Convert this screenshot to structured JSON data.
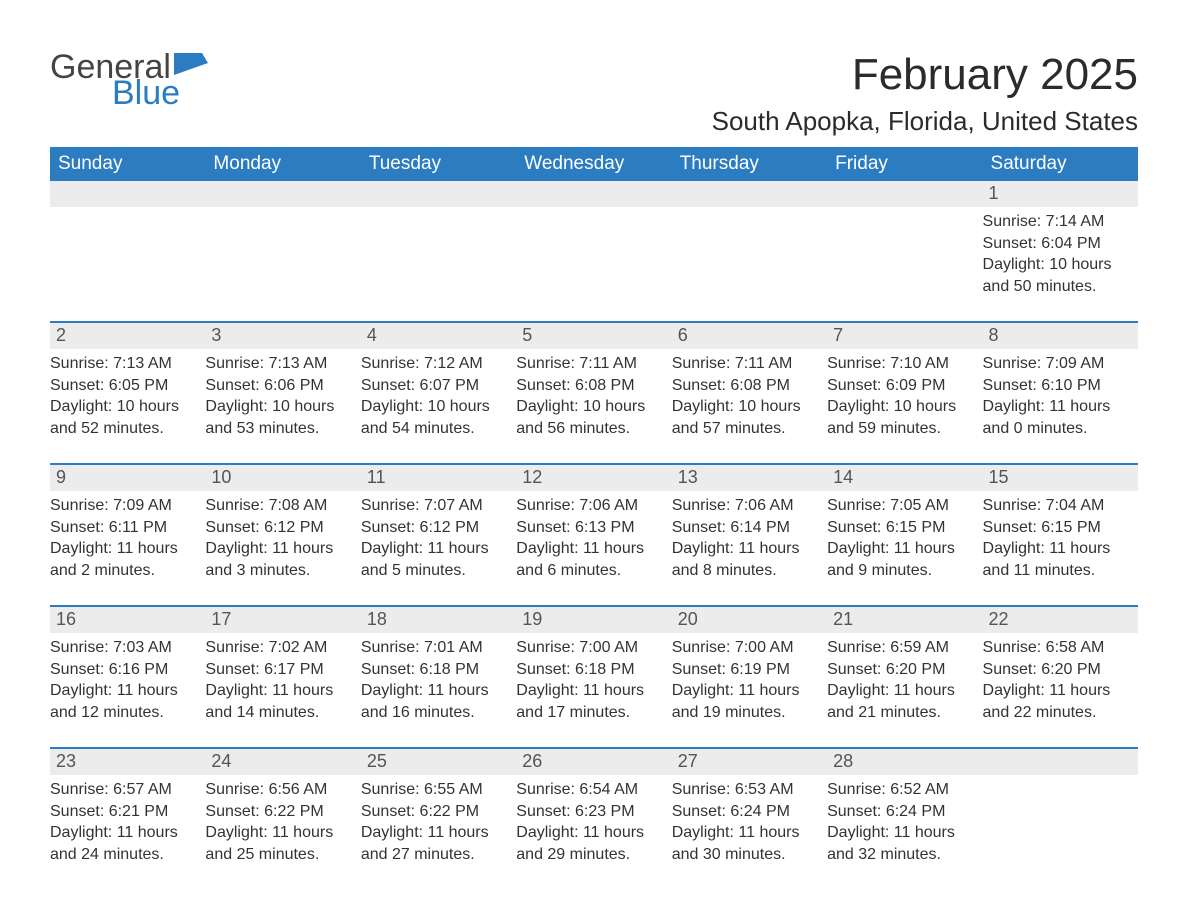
{
  "logo": {
    "word1": "General",
    "word2": "Blue",
    "shape_color": "#2b7cc0",
    "text_color1": "#444444",
    "text_color2": "#2b7cc0"
  },
  "title": {
    "month_year": "February 2025",
    "location": "South Apopka, Florida, United States"
  },
  "colors": {
    "header_bg": "#2b7cc0",
    "header_text": "#ffffff",
    "week_divider": "#2b7cc0",
    "daynum_bg": "#ececec",
    "body_text": "#333333",
    "background": "#ffffff"
  },
  "fonts": {
    "title_size_pt": 33,
    "location_size_pt": 20,
    "dow_size_pt": 14,
    "body_size_pt": 12
  },
  "days_of_week": [
    "Sunday",
    "Monday",
    "Tuesday",
    "Wednesday",
    "Thursday",
    "Friday",
    "Saturday"
  ],
  "weeks": [
    [
      {
        "n": "",
        "sunrise": "",
        "sunset": "",
        "daylight": ""
      },
      {
        "n": "",
        "sunrise": "",
        "sunset": "",
        "daylight": ""
      },
      {
        "n": "",
        "sunrise": "",
        "sunset": "",
        "daylight": ""
      },
      {
        "n": "",
        "sunrise": "",
        "sunset": "",
        "daylight": ""
      },
      {
        "n": "",
        "sunrise": "",
        "sunset": "",
        "daylight": ""
      },
      {
        "n": "",
        "sunrise": "",
        "sunset": "",
        "daylight": ""
      },
      {
        "n": "1",
        "sunrise": "Sunrise: 7:14 AM",
        "sunset": "Sunset: 6:04 PM",
        "daylight": "Daylight: 10 hours and 50 minutes."
      }
    ],
    [
      {
        "n": "2",
        "sunrise": "Sunrise: 7:13 AM",
        "sunset": "Sunset: 6:05 PM",
        "daylight": "Daylight: 10 hours and 52 minutes."
      },
      {
        "n": "3",
        "sunrise": "Sunrise: 7:13 AM",
        "sunset": "Sunset: 6:06 PM",
        "daylight": "Daylight: 10 hours and 53 minutes."
      },
      {
        "n": "4",
        "sunrise": "Sunrise: 7:12 AM",
        "sunset": "Sunset: 6:07 PM",
        "daylight": "Daylight: 10 hours and 54 minutes."
      },
      {
        "n": "5",
        "sunrise": "Sunrise: 7:11 AM",
        "sunset": "Sunset: 6:08 PM",
        "daylight": "Daylight: 10 hours and 56 minutes."
      },
      {
        "n": "6",
        "sunrise": "Sunrise: 7:11 AM",
        "sunset": "Sunset: 6:08 PM",
        "daylight": "Daylight: 10 hours and 57 minutes."
      },
      {
        "n": "7",
        "sunrise": "Sunrise: 7:10 AM",
        "sunset": "Sunset: 6:09 PM",
        "daylight": "Daylight: 10 hours and 59 minutes."
      },
      {
        "n": "8",
        "sunrise": "Sunrise: 7:09 AM",
        "sunset": "Sunset: 6:10 PM",
        "daylight": "Daylight: 11 hours and 0 minutes."
      }
    ],
    [
      {
        "n": "9",
        "sunrise": "Sunrise: 7:09 AM",
        "sunset": "Sunset: 6:11 PM",
        "daylight": "Daylight: 11 hours and 2 minutes."
      },
      {
        "n": "10",
        "sunrise": "Sunrise: 7:08 AM",
        "sunset": "Sunset: 6:12 PM",
        "daylight": "Daylight: 11 hours and 3 minutes."
      },
      {
        "n": "11",
        "sunrise": "Sunrise: 7:07 AM",
        "sunset": "Sunset: 6:12 PM",
        "daylight": "Daylight: 11 hours and 5 minutes."
      },
      {
        "n": "12",
        "sunrise": "Sunrise: 7:06 AM",
        "sunset": "Sunset: 6:13 PM",
        "daylight": "Daylight: 11 hours and 6 minutes."
      },
      {
        "n": "13",
        "sunrise": "Sunrise: 7:06 AM",
        "sunset": "Sunset: 6:14 PM",
        "daylight": "Daylight: 11 hours and 8 minutes."
      },
      {
        "n": "14",
        "sunrise": "Sunrise: 7:05 AM",
        "sunset": "Sunset: 6:15 PM",
        "daylight": "Daylight: 11 hours and 9 minutes."
      },
      {
        "n": "15",
        "sunrise": "Sunrise: 7:04 AM",
        "sunset": "Sunset: 6:15 PM",
        "daylight": "Daylight: 11 hours and 11 minutes."
      }
    ],
    [
      {
        "n": "16",
        "sunrise": "Sunrise: 7:03 AM",
        "sunset": "Sunset: 6:16 PM",
        "daylight": "Daylight: 11 hours and 12 minutes."
      },
      {
        "n": "17",
        "sunrise": "Sunrise: 7:02 AM",
        "sunset": "Sunset: 6:17 PM",
        "daylight": "Daylight: 11 hours and 14 minutes."
      },
      {
        "n": "18",
        "sunrise": "Sunrise: 7:01 AM",
        "sunset": "Sunset: 6:18 PM",
        "daylight": "Daylight: 11 hours and 16 minutes."
      },
      {
        "n": "19",
        "sunrise": "Sunrise: 7:00 AM",
        "sunset": "Sunset: 6:18 PM",
        "daylight": "Daylight: 11 hours and 17 minutes."
      },
      {
        "n": "20",
        "sunrise": "Sunrise: 7:00 AM",
        "sunset": "Sunset: 6:19 PM",
        "daylight": "Daylight: 11 hours and 19 minutes."
      },
      {
        "n": "21",
        "sunrise": "Sunrise: 6:59 AM",
        "sunset": "Sunset: 6:20 PM",
        "daylight": "Daylight: 11 hours and 21 minutes."
      },
      {
        "n": "22",
        "sunrise": "Sunrise: 6:58 AM",
        "sunset": "Sunset: 6:20 PM",
        "daylight": "Daylight: 11 hours and 22 minutes."
      }
    ],
    [
      {
        "n": "23",
        "sunrise": "Sunrise: 6:57 AM",
        "sunset": "Sunset: 6:21 PM",
        "daylight": "Daylight: 11 hours and 24 minutes."
      },
      {
        "n": "24",
        "sunrise": "Sunrise: 6:56 AM",
        "sunset": "Sunset: 6:22 PM",
        "daylight": "Daylight: 11 hours and 25 minutes."
      },
      {
        "n": "25",
        "sunrise": "Sunrise: 6:55 AM",
        "sunset": "Sunset: 6:22 PM",
        "daylight": "Daylight: 11 hours and 27 minutes."
      },
      {
        "n": "26",
        "sunrise": "Sunrise: 6:54 AM",
        "sunset": "Sunset: 6:23 PM",
        "daylight": "Daylight: 11 hours and 29 minutes."
      },
      {
        "n": "27",
        "sunrise": "Sunrise: 6:53 AM",
        "sunset": "Sunset: 6:24 PM",
        "daylight": "Daylight: 11 hours and 30 minutes."
      },
      {
        "n": "28",
        "sunrise": "Sunrise: 6:52 AM",
        "sunset": "Sunset: 6:24 PM",
        "daylight": "Daylight: 11 hours and 32 minutes."
      },
      {
        "n": "",
        "sunrise": "",
        "sunset": "",
        "daylight": ""
      }
    ]
  ]
}
